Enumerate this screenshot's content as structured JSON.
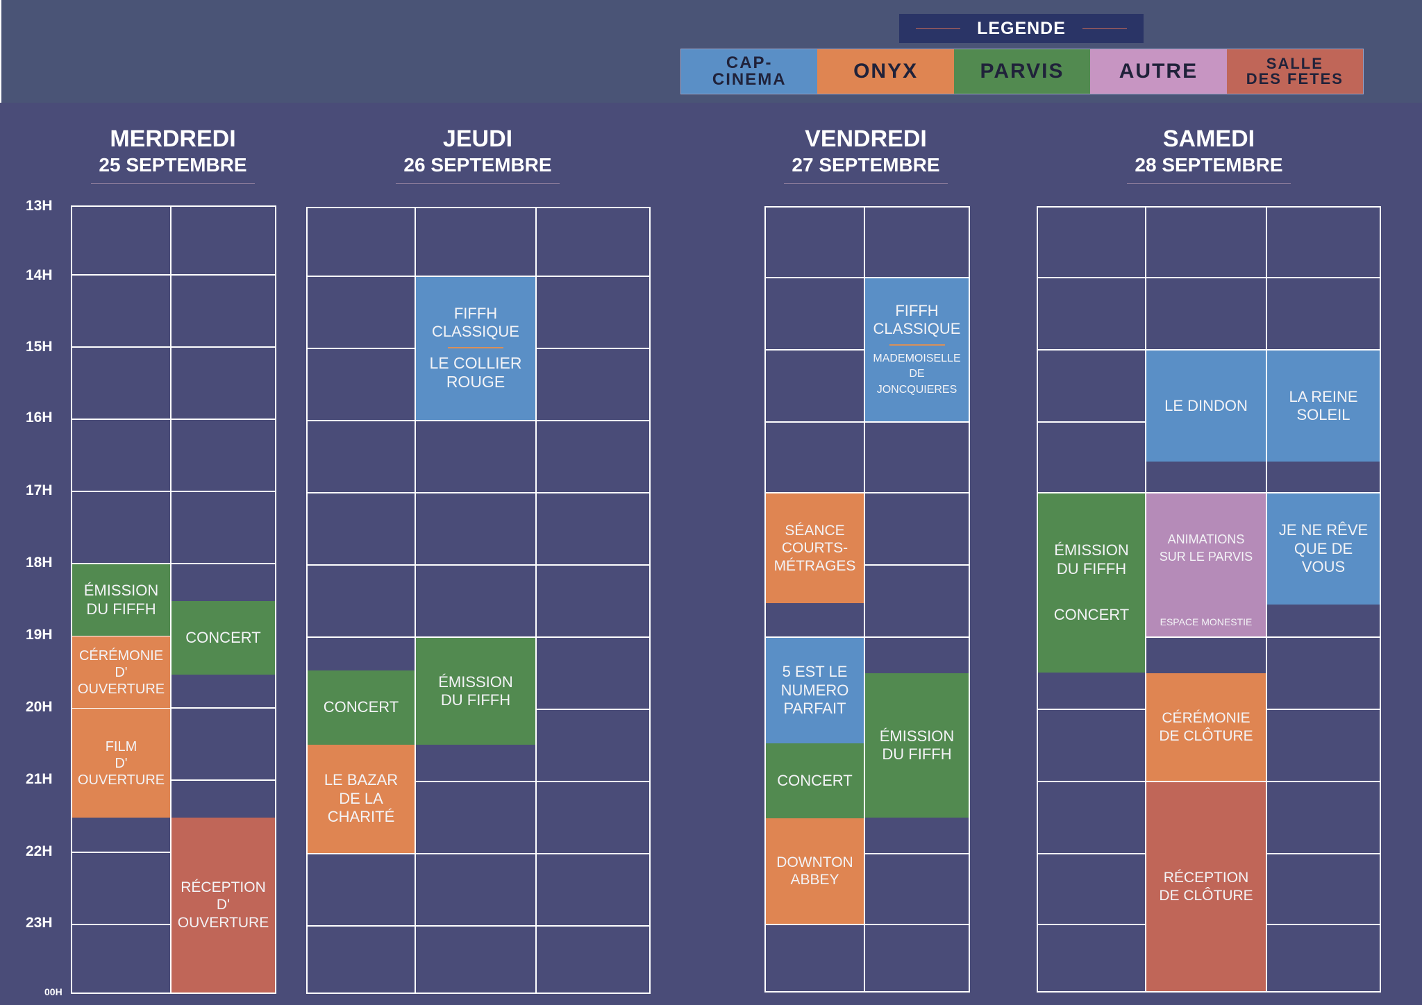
{
  "legend": {
    "title": "LEGENDE",
    "items": [
      {
        "label": "CAP-\nCINEMA",
        "color": "#5a8fc6"
      },
      {
        "label": "ONYX",
        "color": "#df8552"
      },
      {
        "label": "PARVIS",
        "color": "#528a50"
      },
      {
        "label": "AUTRE",
        "color": "#c795c2"
      },
      {
        "label": "SALLE\nDES FETES",
        "color": "#c06658"
      }
    ]
  },
  "hours": [
    "13H",
    "14H",
    "15H",
    "16H",
    "17H",
    "18H",
    "19H",
    "20H",
    "21H",
    "22H",
    "23H",
    "00H"
  ],
  "days": [
    {
      "name": "MERDREDI",
      "date": "25 SEPTEMBRE"
    },
    {
      "name": "JEUDI",
      "date": "26 SEPTEMBRE"
    },
    {
      "name": "VENDREDI",
      "date": "27 SEPTEMBRE"
    },
    {
      "name": "SAMEDI",
      "date": "28 SEPTEMBRE"
    }
  ],
  "events": {
    "d1_emission": "ÉMISSION\nDU FIFFH",
    "d1_ceremonie": "CÉRÉMONIE\nD' OUVERTURE",
    "d1_film": "FILM\nD' OUVERTURE",
    "d1_concert": "CONCERT",
    "d1_reception": "RÉCEPTION\nD' OUVERTURE",
    "d2_fiffh": "FIFFH\nCLASSIQUE",
    "d2_collier": "LE COLLIER\nROUGE",
    "d2_concert": "CONCERT",
    "d2_bazar": "LE BAZAR\nDE LA\nCHARITÉ",
    "d2_emission": "ÉMISSION\nDU FIFFH",
    "d3_seance": "SÉANCE\nCOURTS-\nMÉTRAGES",
    "d3_5est": "5 EST LE\nNUMERO\nPARFAIT",
    "d3_concert": "CONCERT",
    "d3_downton": "DOWNTON\nABBEY",
    "d3_fiffh": "FIFFH\nCLASSIQUE",
    "d3_mademoiselle": "MADEMOISELLE\nDE JONCQUIERES",
    "d3_emission": "ÉMISSION\nDU FIFFH",
    "d4_emission": "ÉMISSION\nDU FIFFH",
    "d4_concert": "CONCERT",
    "d4_dindon": "LE DINDON",
    "d4_animations": "ANIMATIONS\nSUR LE PARVIS",
    "d4_espace": "ESPACE MONESTIE",
    "d4_ceremonie": "CÉRÉMONIE\nDE CLÔTURE",
    "d4_reception": "RÉCEPTION\nDE CLÔTURE",
    "d4_reine": "LA REINE\nSOLEIL",
    "d4_jene": "JE NE RÊVE\nQUE DE\nVOUS"
  }
}
